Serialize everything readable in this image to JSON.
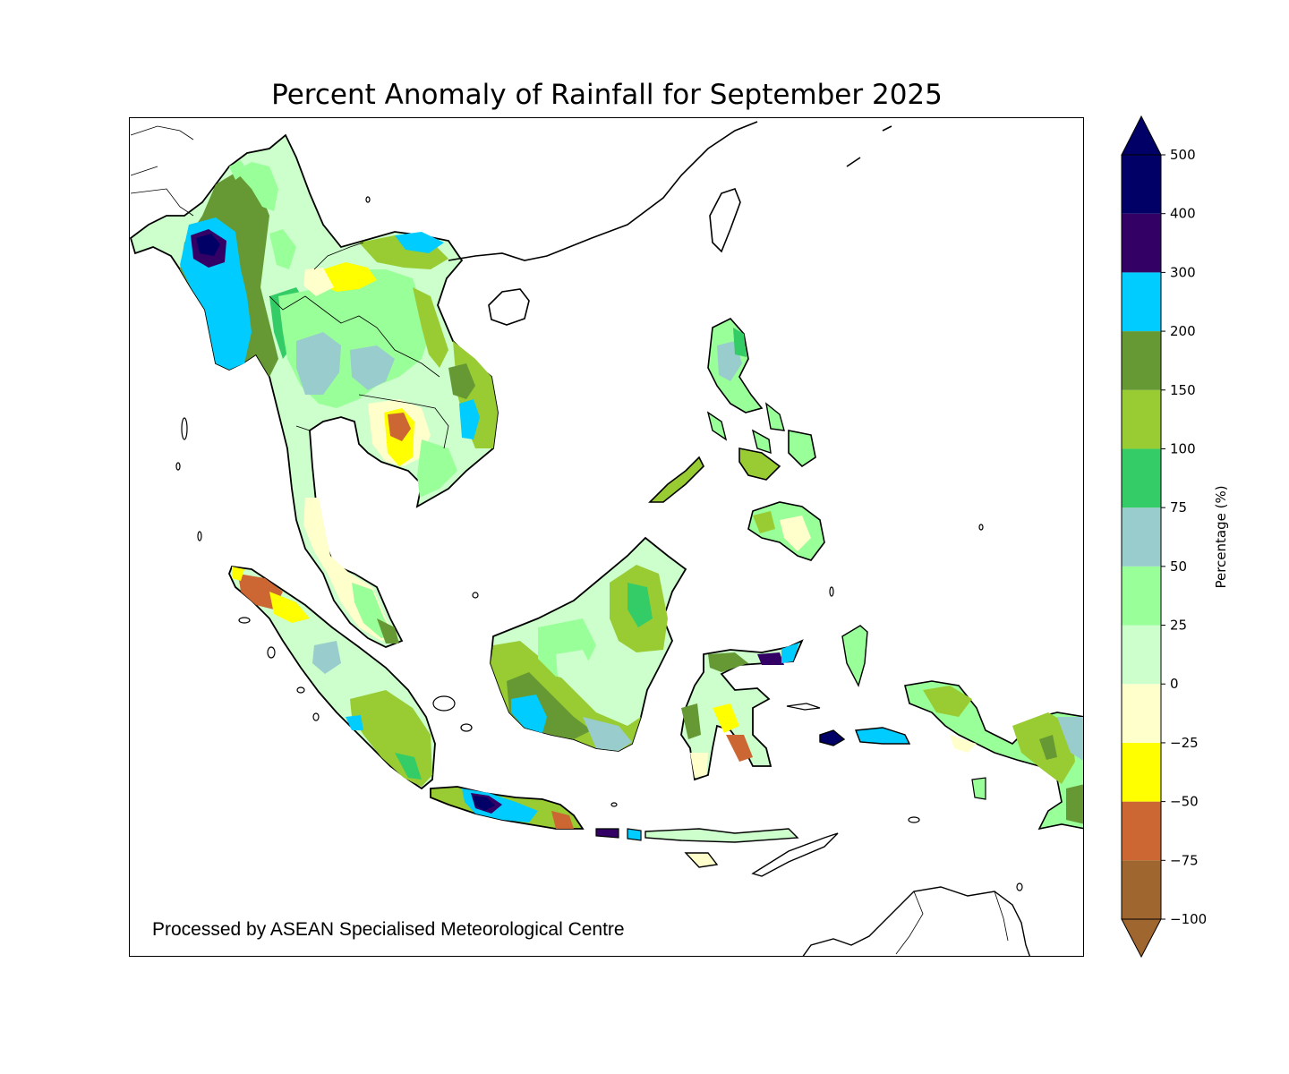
{
  "title": "Percent Anomaly of Rainfall for September 2025",
  "credit": "Processed by ASEAN Specialised Meteorological Centre",
  "colorbar": {
    "label": "Percentage (%)",
    "levels": [
      {
        "from": -100,
        "to": -75,
        "color": "#a0662f"
      },
      {
        "from": -75,
        "to": -50,
        "color": "#cc6633"
      },
      {
        "from": -50,
        "to": -25,
        "color": "#ffff00"
      },
      {
        "from": -25,
        "to": 0,
        "color": "#ffffcc"
      },
      {
        "from": 0,
        "to": 25,
        "color": "#ccffcc"
      },
      {
        "from": 25,
        "to": 50,
        "color": "#99ff99"
      },
      {
        "from": 50,
        "to": 75,
        "color": "#99cccc"
      },
      {
        "from": 75,
        "to": 100,
        "color": "#33cc66"
      },
      {
        "from": 100,
        "to": 150,
        "color": "#99cc33"
      },
      {
        "from": 150,
        "to": 200,
        "color": "#669933"
      },
      {
        "from": 200,
        "to": 300,
        "color": "#00ccff"
      },
      {
        "from": 300,
        "to": 400,
        "color": "#330066"
      },
      {
        "from": 400,
        "to": 500,
        "color": "#000066"
      }
    ],
    "ticks": [
      "500",
      "400",
      "300",
      "200",
      "150",
      "100",
      "75",
      "50",
      "25",
      "0",
      "−25",
      "−50",
      "−75",
      "−100"
    ],
    "extend_low_color": "#a0662f",
    "extend_high_color": "#000066"
  }
}
